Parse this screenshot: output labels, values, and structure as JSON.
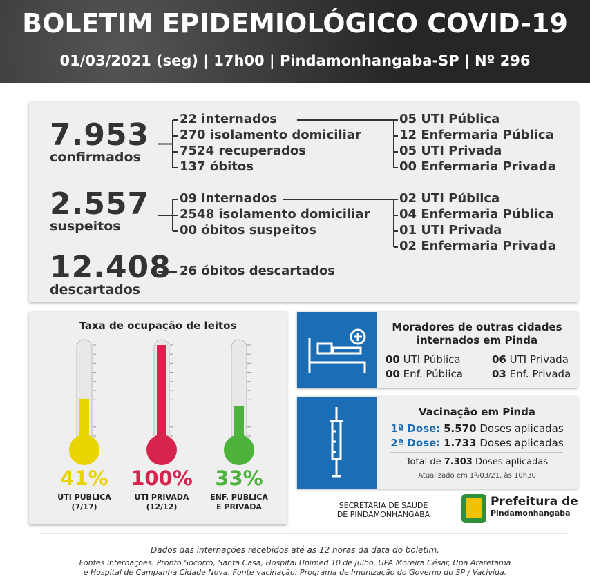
{
  "header": {
    "title": "BOLETIM EPIDEMIOLÓGICO COVID-19",
    "subtitle": "01/03/2021 (seg) | 17h00 | Pindamonhangaba-SP | Nº 296"
  },
  "summary": {
    "confirmed": {
      "total": "7.953",
      "label": "confirmados",
      "items": [
        "22 internados",
        "270 isolamento domiciliar",
        "7524 recuperados",
        "137 óbitos"
      ],
      "beds": [
        "05 UTI Pública",
        "12 Enfermaria Pública",
        "05 UTI Privada",
        "00 Enfermaria Privada"
      ]
    },
    "suspected": {
      "total": "2.557",
      "label": "suspeitos",
      "items": [
        "09 internados",
        "2548 isolamento domiciliar",
        "00 óbitos suspeitos"
      ],
      "beds": [
        "02 UTI Pública",
        "04 Enfermaria Pública",
        "01 UTI Privada",
        "02 Enfermaria Privada"
      ]
    },
    "discarded": {
      "total": "12.408",
      "label": "descartados",
      "items": [
        "26 óbitos descartados"
      ]
    }
  },
  "occupancy": {
    "title": "Taxa de ocupação de leitos",
    "items": [
      {
        "level": 41,
        "label": "41%",
        "caption": [
          "UTI PÚBLICA",
          "(7/17)"
        ]
      },
      {
        "level": 100,
        "label": "100%",
        "caption": [
          "UTI PRIVADA",
          "(12/12)"
        ]
      },
      {
        "level": 33,
        "label": "33%",
        "caption": [
          "ENF. PÚBLICA",
          "E PRIVADA"
        ]
      }
    ]
  },
  "residents": {
    "title": [
      "Moradores de outras cidades",
      "internados em Pinda"
    ],
    "items": [
      {
        "count": "00",
        "label": "UTI Pública"
      },
      {
        "count": "06",
        "label": "UTI Privada"
      },
      {
        "count": "00",
        "label": "Enf. Pública"
      },
      {
        "count": "03",
        "label": "Enf. Privada"
      }
    ]
  },
  "vaccination": {
    "title": "Vacinação em Pinda",
    "doses": [
      {
        "dose": "1ª Dose:",
        "count": "5.570",
        "text": "Doses aplicadas"
      },
      {
        "dose": "2ª Dose:",
        "count": "1.733",
        "text": "Doses aplicadas"
      }
    ],
    "total": {
      "prefix": "Total de",
      "count": "7.303",
      "text": "Doses aplicadas"
    },
    "updated": "Atualizado em 1º/03/21, às 10h30"
  },
  "footer": {
    "secretaria": [
      "SECRETARIA DE SAÚDE",
      "DE PINDAMONHANGABA"
    ],
    "prefeitura": [
      "Prefeitura de",
      "Pindamonhangaba"
    ],
    "note": "Dados das internações recebidos até as 12 horas da data do boletim.",
    "sources": [
      "Fontes internações: Pronto Socorro, Santa Casa, Hospital Unimed 10 de Julho, UPA Moreira César, Upa Araretama",
      "e Hospital de Campanha Cidade Nova. Fonte vacinação: Programa de Imunização do Governo do SP / Vacivida."
    ]
  }
}
